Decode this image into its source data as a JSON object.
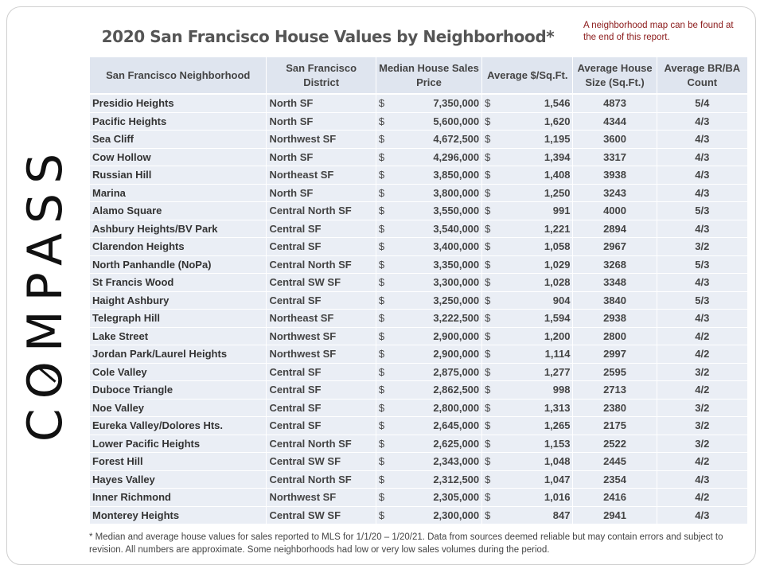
{
  "title": "2020 San Francisco House Values by Neighborhood*",
  "map_note": "A neighborhood map can be found at the end of this report.",
  "logo": "COMPASS",
  "currency_symbol": "$",
  "colors": {
    "header_bg": "#dfe5ef",
    "row_bg": "#eaeef5",
    "note": "#8b1a1a"
  },
  "columns": [
    "San Francisco Neighborhood",
    "San Francisco District",
    "Median House Sales Price",
    "Average $/Sq.Ft.",
    "Average House Size (Sq.Ft.)",
    "Average BR/BA Count"
  ],
  "rows": [
    [
      "Presidio Heights",
      "North SF",
      "7,350,000",
      "1,546",
      "4873",
      "5/4"
    ],
    [
      "Pacific Heights",
      "North SF",
      "5,600,000",
      "1,620",
      "4344",
      "4/3"
    ],
    [
      "Sea Cliff",
      "Northwest SF",
      "4,672,500",
      "1,195",
      "3600",
      "4/3"
    ],
    [
      "Cow Hollow",
      "North SF",
      "4,296,000",
      "1,394",
      "3317",
      "4/3"
    ],
    [
      "Russian Hill",
      "Northeast SF",
      "3,850,000",
      "1,408",
      "3938",
      "4/3"
    ],
    [
      "Marina",
      "North SF",
      "3,800,000",
      "1,250",
      "3243",
      "4/3"
    ],
    [
      "Alamo Square",
      "Central North SF",
      "3,550,000",
      "991",
      "4000",
      "5/3"
    ],
    [
      "Ashbury Heights/BV Park",
      "Central SF",
      "3,540,000",
      "1,221",
      "2894",
      "4/3"
    ],
    [
      "Clarendon Heights",
      "Central SF",
      "3,400,000",
      "1,058",
      "2967",
      "3/2"
    ],
    [
      "North Panhandle (NoPa)",
      "Central North SF",
      "3,350,000",
      "1,029",
      "3268",
      "5/3"
    ],
    [
      "St Francis Wood",
      "Central SW SF",
      "3,300,000",
      "1,028",
      "3348",
      "4/3"
    ],
    [
      "Haight Ashbury",
      "Central SF",
      "3,250,000",
      "904",
      "3840",
      "5/3"
    ],
    [
      "Telegraph Hill",
      "Northeast SF",
      "3,222,500",
      "1,594",
      "2938",
      "4/3"
    ],
    [
      "Lake Street",
      "Northwest SF",
      "2,900,000",
      "1,200",
      "2800",
      "4/2"
    ],
    [
      "Jordan Park/Laurel Heights",
      "Northwest SF",
      "2,900,000",
      "1,114",
      "2997",
      "4/2"
    ],
    [
      "Cole Valley",
      "Central SF",
      "2,875,000",
      "1,277",
      "2595",
      "3/2"
    ],
    [
      "Duboce Triangle",
      "Central SF",
      "2,862,500",
      "998",
      "2713",
      "4/2"
    ],
    [
      "Noe Valley",
      "Central SF",
      "2,800,000",
      "1,313",
      "2380",
      "3/2"
    ],
    [
      "Eureka Valley/Dolores Hts.",
      "Central SF",
      "2,645,000",
      "1,265",
      "2175",
      "3/2"
    ],
    [
      "Lower Pacific Heights",
      "Central North SF",
      "2,625,000",
      "1,153",
      "2522",
      "3/2"
    ],
    [
      "Forest Hill",
      "Central SW SF",
      "2,343,000",
      "1,048",
      "2445",
      "4/2"
    ],
    [
      "Hayes Valley",
      "Central North SF",
      "2,312,500",
      "1,047",
      "2354",
      "4/3"
    ],
    [
      "Inner Richmond",
      "Northwest SF",
      "2,305,000",
      "1,016",
      "2416",
      "4/2"
    ],
    [
      "Monterey Heights",
      "Central SW SF",
      "2,300,000",
      "847",
      "2941",
      "4/3"
    ]
  ],
  "footnote": "* Median and average house values for sales reported to MLS for 1/1/20 – 1/20/21. Data from sources deemed reliable but may contain errors and subject to revision.  All numbers are approximate. Some neighborhoods  had low or very low sales volumes during the period."
}
